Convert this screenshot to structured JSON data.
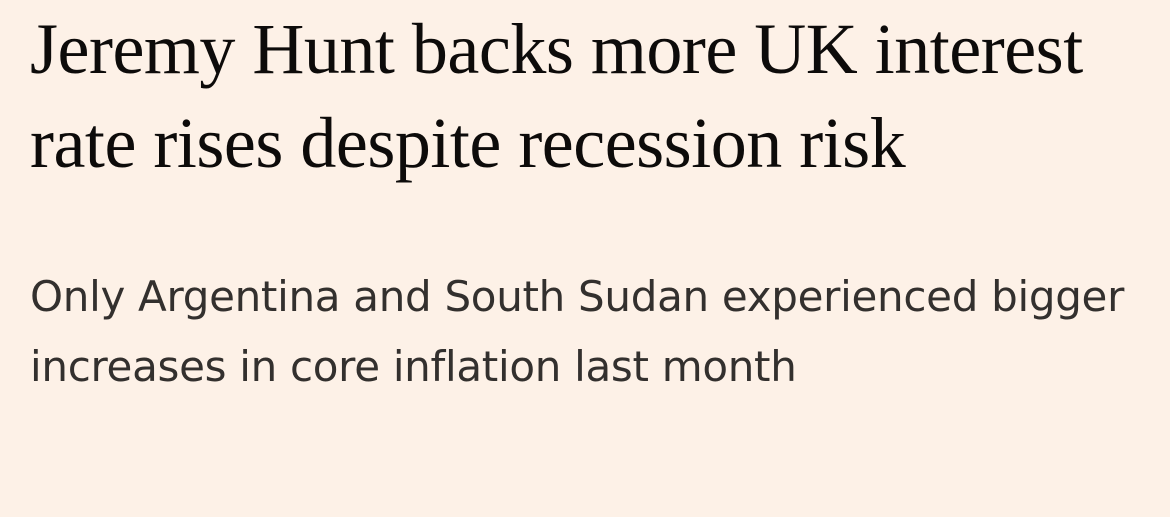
{
  "article": {
    "headline": "Jeremy Hunt backs more UK interest rate rises despite recession risk",
    "standfirst": "Only Argentina and South Sudan experienced bigger increases in core inflation last month"
  }
}
